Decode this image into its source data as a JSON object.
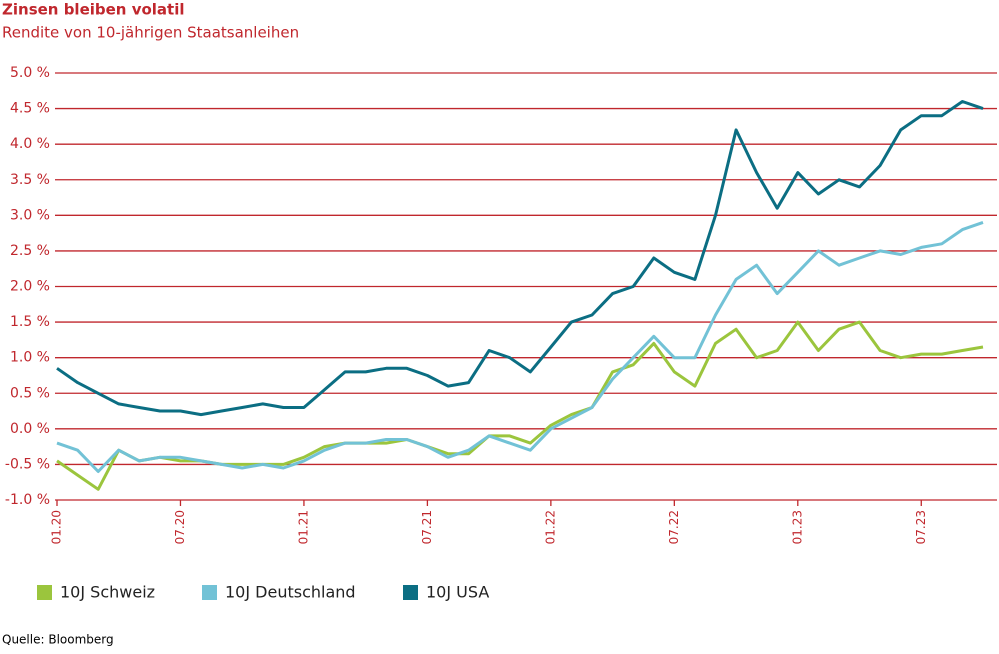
{
  "chart_data": {
    "type": "line",
    "title": "Zinsen bleiben volatil",
    "subtitle": "Rendite von 10-jährigen Staatsanleihen",
    "source": "Quelle: Bloomberg",
    "x": [
      "2020-01",
      "2020-02",
      "2020-03",
      "2020-04",
      "2020-05",
      "2020-06",
      "2020-07",
      "2020-08",
      "2020-09",
      "2020-10",
      "2020-11",
      "2020-12",
      "2021-01",
      "2021-02",
      "2021-03",
      "2021-04",
      "2021-05",
      "2021-06",
      "2021-07",
      "2021-08",
      "2021-09",
      "2021-10",
      "2021-11",
      "2021-12",
      "2022-01",
      "2022-02",
      "2022-03",
      "2022-04",
      "2022-05",
      "2022-06",
      "2022-07",
      "2022-08",
      "2022-09",
      "2022-10",
      "2022-11",
      "2022-12",
      "2023-01",
      "2023-02",
      "2023-03",
      "2023-04",
      "2023-05",
      "2023-06",
      "2023-07",
      "2023-08",
      "2023-09",
      "2023-10"
    ],
    "series": [
      {
        "name": "10J Schweiz",
        "color": "#9bc53d",
        "values": [
          -0.45,
          -0.65,
          -0.85,
          -0.3,
          -0.45,
          -0.4,
          -0.45,
          -0.45,
          -0.5,
          -0.5,
          -0.5,
          -0.5,
          -0.4,
          -0.25,
          -0.2,
          -0.2,
          -0.2,
          -0.15,
          -0.25,
          -0.35,
          -0.35,
          -0.1,
          -0.1,
          -0.2,
          0.05,
          0.2,
          0.3,
          0.8,
          0.9,
          1.2,
          0.8,
          0.6,
          1.2,
          1.4,
          1.0,
          1.1,
          1.5,
          1.1,
          1.4,
          1.5,
          1.1,
          1.0,
          1.05,
          1.05,
          1.1,
          1.15
        ]
      },
      {
        "name": "10J Deutschland",
        "color": "#72c2d6",
        "values": [
          -0.2,
          -0.3,
          -0.6,
          -0.3,
          -0.45,
          -0.4,
          -0.4,
          -0.45,
          -0.5,
          -0.55,
          -0.5,
          -0.55,
          -0.45,
          -0.3,
          -0.2,
          -0.2,
          -0.15,
          -0.15,
          -0.25,
          -0.4,
          -0.3,
          -0.1,
          -0.2,
          -0.3,
          0.0,
          0.15,
          0.3,
          0.7,
          1.0,
          1.3,
          1.0,
          1.0,
          1.6,
          2.1,
          2.3,
          1.9,
          2.2,
          2.5,
          2.3,
          2.4,
          2.5,
          2.45,
          2.55,
          2.6,
          2.8,
          2.9
        ]
      },
      {
        "name": "10J USA",
        "color": "#0b6e83",
        "values": [
          0.85,
          0.65,
          0.5,
          0.35,
          0.3,
          0.25,
          0.25,
          0.2,
          0.25,
          0.3,
          0.35,
          0.3,
          0.3,
          0.55,
          0.8,
          0.8,
          0.85,
          0.85,
          0.75,
          0.6,
          0.65,
          1.1,
          1.0,
          0.8,
          1.15,
          1.5,
          1.6,
          1.9,
          2.0,
          2.4,
          2.2,
          2.1,
          3.0,
          4.2,
          3.6,
          3.1,
          3.6,
          3.3,
          3.5,
          3.4,
          3.7,
          4.2,
          4.4,
          4.4,
          4.6,
          4.5
        ]
      }
    ],
    "xlim": [
      "2020-01",
      "2023-10"
    ],
    "xticks": [
      {
        "value": "2020-01",
        "label": "01.20"
      },
      {
        "value": "2020-07",
        "label": "07.20"
      },
      {
        "value": "2021-01",
        "label": "01.21"
      },
      {
        "value": "2021-07",
        "label": "07.21"
      },
      {
        "value": "2022-01",
        "label": "01.22"
      },
      {
        "value": "2022-07",
        "label": "07.22"
      },
      {
        "value": "2023-01",
        "label": "01.23"
      },
      {
        "value": "2023-07",
        "label": "07.23"
      }
    ],
    "ylim": [
      -1,
      5
    ],
    "yticks": [
      {
        "value": -1,
        "label": "-1.0 %"
      },
      {
        "value": -0.5,
        "label": "-0.5 %"
      },
      {
        "value": 0,
        "label": "0.0 %"
      },
      {
        "value": 0.5,
        "label": "0.5 %"
      },
      {
        "value": 1,
        "label": "1.0 %"
      },
      {
        "value": 1.5,
        "label": "1.5 %"
      },
      {
        "value": 2,
        "label": "2.0 %"
      },
      {
        "value": 2.5,
        "label": "2.5 %"
      },
      {
        "value": 3,
        "label": "3.0 %"
      },
      {
        "value": 3.5,
        "label": "3.5 %"
      },
      {
        "value": 4,
        "label": "4.0 %"
      },
      {
        "value": 4.5,
        "label": "4.5 %"
      },
      {
        "value": 5,
        "label": "5.0 %"
      }
    ],
    "grid": true,
    "grid_color": "#c0272d",
    "legend": "bottom"
  }
}
